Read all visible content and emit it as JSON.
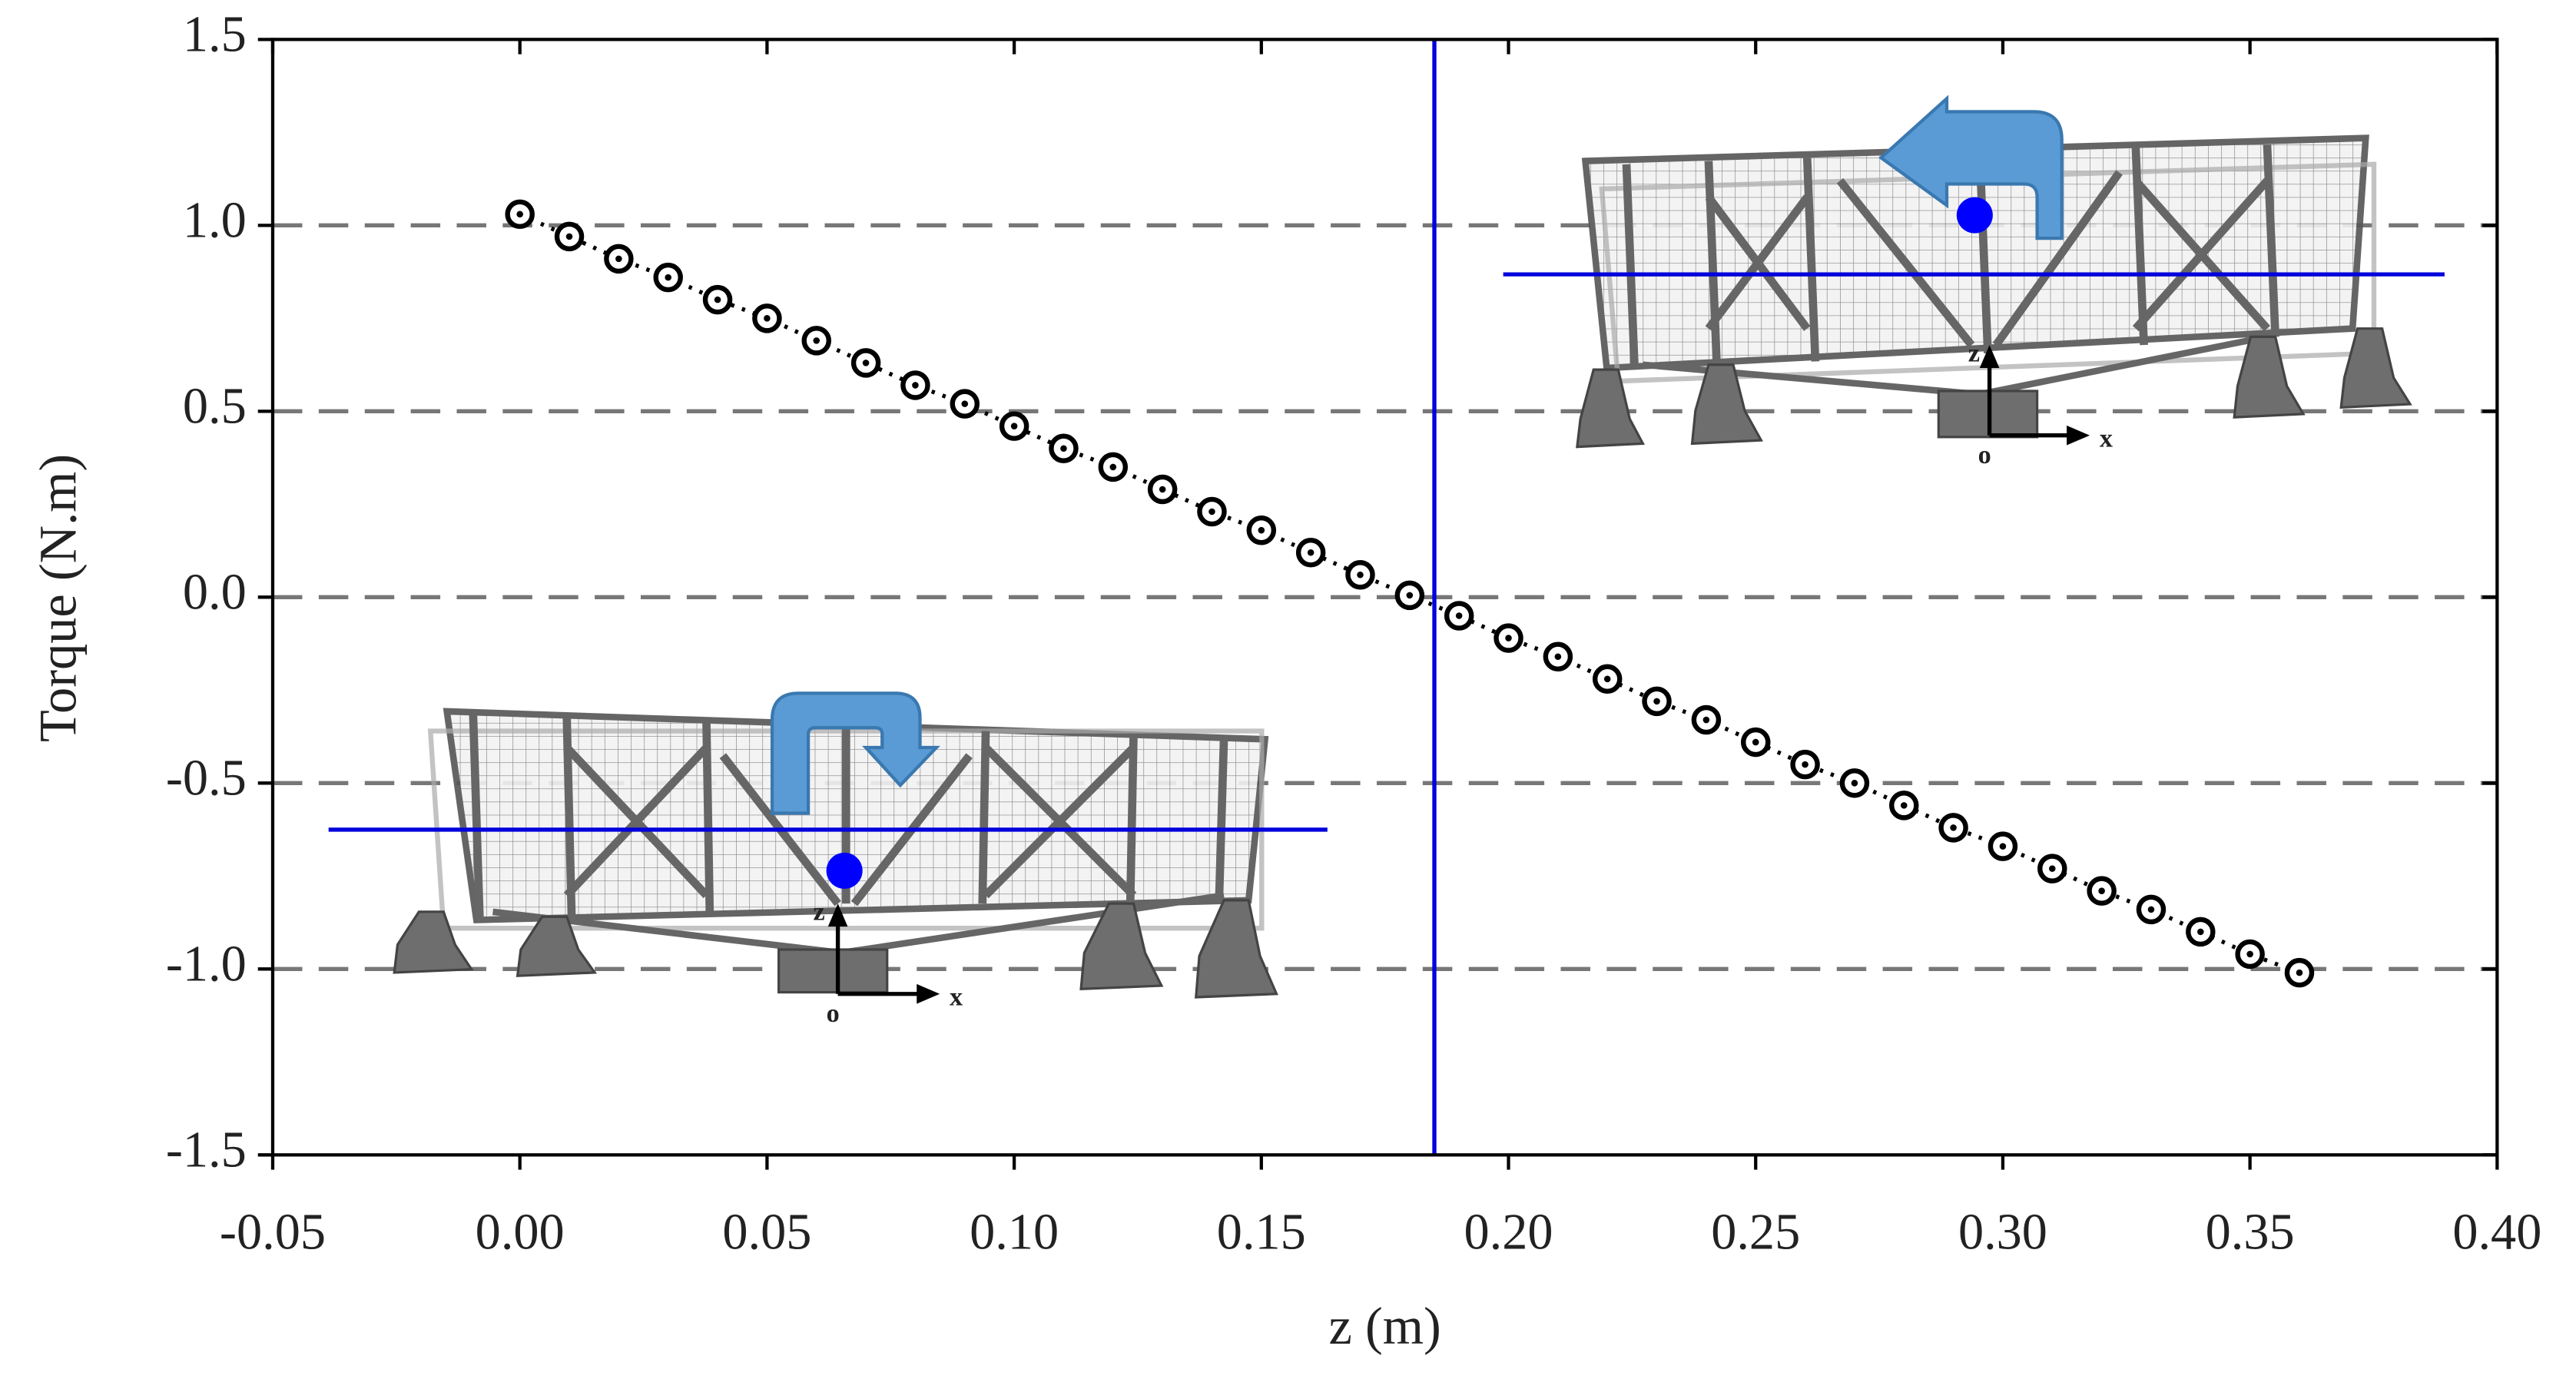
{
  "chart_data": {
    "type": "line",
    "x_label": "z (m)",
    "y_label": "Torque (N.m)",
    "x": [
      0,
      0.01,
      0.02,
      0.03,
      0.04,
      0.05,
      0.06,
      0.07,
      0.08,
      0.09,
      0.1,
      0.11,
      0.12,
      0.13,
      0.14,
      0.15,
      0.16,
      0.17,
      0.18,
      0.19,
      0.2,
      0.21,
      0.22,
      0.23,
      0.24,
      0.25,
      0.26,
      0.27,
      0.28,
      0.29,
      0.3,
      0.31,
      0.32,
      0.33,
      0.34,
      0.35,
      0.36
    ],
    "series": [
      {
        "color": "#000000",
        "values": [
          1.03,
          0.97,
          0.91,
          0.86,
          0.8,
          0.75,
          0.69,
          0.63,
          0.57,
          0.52,
          0.46,
          0.4,
          0.35,
          0.29,
          0.23,
          0.18,
          0.12,
          0.06,
          0.005,
          -0.05,
          -0.11,
          -0.16,
          -0.22,
          -0.28,
          -0.33,
          -0.39,
          -0.45,
          -0.5,
          -0.56,
          -0.62,
          -0.67,
          -0.73,
          -0.79,
          -0.84,
          -0.9,
          -0.96,
          -1.01
        ]
      }
    ],
    "xlim": [
      -0.05,
      0.4
    ],
    "xticks": [
      -0.05,
      {
        "value": 0,
        "label": "0.00"
      },
      0.05,
      {
        "value": 0.1,
        "label": "0.10"
      },
      0.15,
      {
        "value": 0.2,
        "label": "0.20"
      },
      0.25,
      {
        "value": 0.3,
        "label": "0.30"
      },
      0.35,
      {
        "value": 0.4,
        "label": "0.40"
      }
    ],
    "ylim": [
      -1.5,
      1.5
    ],
    "yticks": [
      -1.5,
      {
        "value": -1,
        "label": "-1.0"
      },
      -0.5,
      {
        "value": 0,
        "label": "0.0"
      },
      0.5,
      {
        "value": 1,
        "label": "1.0"
      },
      1.5
    ],
    "grid_values": [
      -1,
      -0.5,
      0,
      0.5,
      1
    ],
    "vline": 0.185,
    "vline_color": "#0000dd",
    "insets": [
      {
        "z_label": "z",
        "origin_label": "o",
        "x_label": "x"
      },
      {
        "z_label": "z",
        "origin_label": "o",
        "x_label": "x"
      }
    ]
  }
}
